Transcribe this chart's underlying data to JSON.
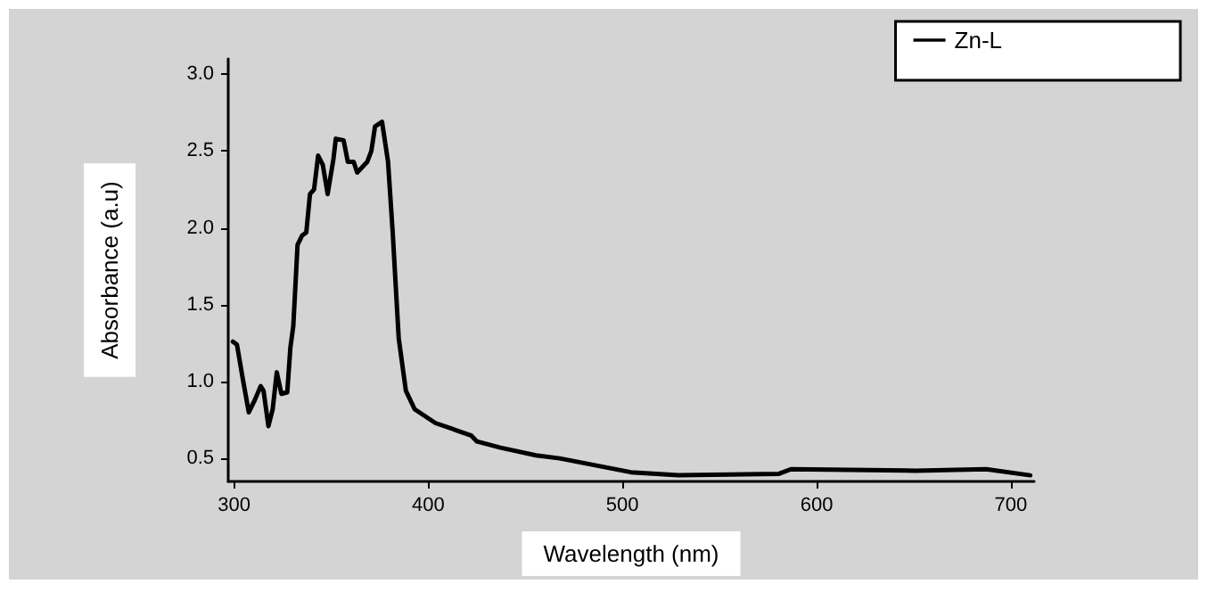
{
  "chart_data": {
    "type": "line",
    "xlabel": "Wavelength (nm)",
    "ylabel": "Absorbance (a.u)",
    "xlim": [
      297,
      712
    ],
    "xticks": [
      300,
      400,
      500,
      600,
      700
    ],
    "ylim": [
      0.35,
      3.1
    ],
    "yticks": [
      0.5,
      {
        "value": 1,
        "label": "1.0"
      },
      1.5,
      {
        "value": 2,
        "label": "2.0"
      },
      2.5,
      {
        "value": 3,
        "label": "3.0"
      }
    ],
    "grid": false,
    "legend": "top right",
    "marker": "none",
    "series": [
      {
        "name": "Zn-L",
        "color": "#000000",
        "x": [
          299.4,
          301.5,
          304.6,
          307.6,
          310.7,
          313.7,
          315.2,
          317.7,
          319.9,
          322,
          324.4,
          327.4,
          329,
          330.5,
          332.7,
          335,
          337.2,
          339.1,
          341.2,
          343.3,
          345.7,
          348.2,
          351.2,
          352.4,
          356.4,
          358.6,
          361.6,
          363.4,
          368.6,
          370.7,
          372.6,
          376.2,
          379.3,
          381.7,
          384.8,
          388.5,
          393,
          403.7,
          422,
          425.1,
          437.2,
          455.5,
          467.7,
          504.3,
          528.7,
          580.6,
          586.8,
          650.7,
          687.3,
          710
        ],
        "values": [
          1.26,
          1.24,
          1.01,
          0.8,
          0.88,
          0.97,
          0.94,
          0.71,
          0.82,
          1.06,
          0.92,
          0.93,
          1.22,
          1.36,
          1.89,
          1.95,
          1.97,
          2.22,
          2.25,
          2.47,
          2.41,
          2.22,
          2.45,
          2.58,
          2.57,
          2.43,
          2.43,
          2.36,
          2.43,
          2.5,
          2.66,
          2.69,
          2.43,
          1.97,
          1.28,
          0.94,
          0.82,
          0.73,
          0.65,
          0.61,
          0.57,
          0.52,
          0.5,
          0.41,
          0.39,
          0.4,
          0.43,
          0.42,
          0.43,
          0.39
        ]
      }
    ]
  }
}
